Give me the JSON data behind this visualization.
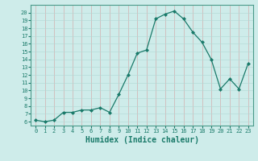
{
  "x": [
    0,
    1,
    2,
    3,
    4,
    5,
    6,
    7,
    8,
    9,
    10,
    11,
    12,
    13,
    14,
    15,
    16,
    17,
    18,
    19,
    20,
    21,
    22,
    23
  ],
  "y": [
    6.2,
    6.0,
    6.2,
    7.2,
    7.2,
    7.5,
    7.5,
    7.8,
    7.2,
    9.5,
    12.0,
    14.8,
    15.2,
    19.2,
    19.8,
    20.2,
    19.2,
    17.5,
    16.2,
    14.0,
    10.2,
    11.5,
    10.2,
    13.5
  ],
  "line_color": "#1a7a6a",
  "marker": "D",
  "markersize": 2.0,
  "linewidth": 0.9,
  "xlabel": "Humidex (Indice chaleur)",
  "ylim": [
    5.5,
    21.0
  ],
  "xlim": [
    -0.5,
    23.5
  ],
  "yticks": [
    6,
    7,
    8,
    9,
    10,
    11,
    12,
    13,
    14,
    15,
    16,
    17,
    18,
    19,
    20
  ],
  "xticks": [
    0,
    1,
    2,
    3,
    4,
    5,
    6,
    7,
    8,
    9,
    10,
    11,
    12,
    13,
    14,
    15,
    16,
    17,
    18,
    19,
    20,
    21,
    22,
    23
  ],
  "bg_color": "#ceecea",
  "grid_color": "#b0d8d4",
  "tick_fontsize": 5.0,
  "xlabel_fontsize": 7.0,
  "xlabel_fontweight": "bold",
  "spine_color": "#4a9a8a"
}
